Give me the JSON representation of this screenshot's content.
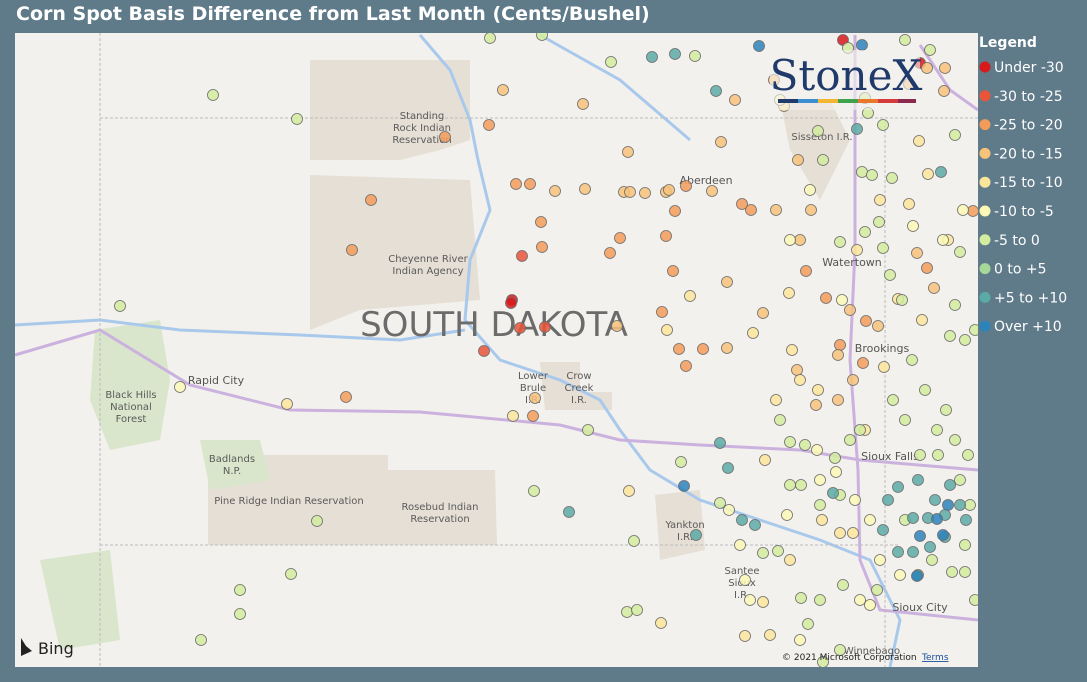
{
  "title": "Corn Spot Basis Difference from Last Month (Cents/Bushel)",
  "legend": {
    "title": "Legend",
    "items": [
      {
        "name": "Under -30",
        "color": "#d7191c"
      },
      {
        "name": "-30 to -25",
        "color": "#e8553a"
      },
      {
        "name": "-25 to -20",
        "color": "#f39c5a"
      },
      {
        "name": "-20 to -15",
        "color": "#f7c27a"
      },
      {
        "name": "-15 to -10",
        "color": "#fbe59a"
      },
      {
        "name": "-10 to -5",
        "color": "#fcf9b6"
      },
      {
        "name": "-5 to 0",
        "color": "#d3ec9f"
      },
      {
        "name": "0 to +5",
        "color": "#a6d89a"
      },
      {
        "name": "+5 to +10",
        "color": "#5aaaa6"
      },
      {
        "name": "Over +10",
        "color": "#2b83ba"
      }
    ]
  },
  "map": {
    "state": "SOUTH DAKOTA",
    "labels": [
      {
        "lines": [
          "Standing",
          "Rock Indian",
          "Reservation"
        ]
      },
      {
        "lines": [
          "Cheyenne River",
          "Indian Agency"
        ]
      },
      {
        "lines": [
          "Aberdeen"
        ]
      },
      {
        "lines": [
          "Sisseton I.R."
        ]
      },
      {
        "lines": [
          "Watertown"
        ]
      },
      {
        "lines": [
          "Brookings"
        ]
      },
      {
        "lines": [
          "Rapid City"
        ]
      },
      {
        "lines": [
          "Black Hills",
          "National",
          "Forest"
        ]
      },
      {
        "lines": [
          "Badlands",
          "N.P."
        ]
      },
      {
        "lines": [
          "Pine Ridge Indian Reservation"
        ]
      },
      {
        "lines": [
          "Rosebud Indian",
          "Reservation"
        ]
      },
      {
        "lines": [
          "Lower",
          "Brule",
          "I.R."
        ]
      },
      {
        "lines": [
          "Crow",
          "Creek",
          "I.R."
        ]
      },
      {
        "lines": [
          "Yankton",
          "I.R."
        ]
      },
      {
        "lines": [
          "Santee",
          "Sioux",
          "I.R."
        ]
      },
      {
        "lines": [
          "Sioux Falls"
        ]
      },
      {
        "lines": [
          "Sioux City"
        ]
      },
      {
        "lines": [
          "Winnebago"
        ]
      }
    ],
    "copyright": "© 2021 Microsoft Corporation",
    "terms": "Terms",
    "provider": "Bing",
    "logo": "StoneX"
  }
}
